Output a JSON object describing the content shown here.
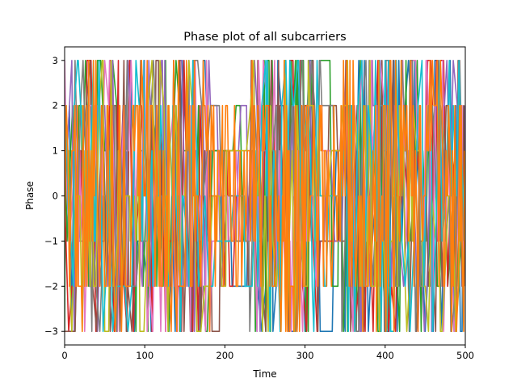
{
  "chart_data": {
    "type": "line",
    "title": "Phase plot of all subcarriers",
    "xlabel": "Time",
    "ylabel": "Phase",
    "xlim": [
      0,
      500
    ],
    "ylim": [
      -3.3,
      3.3
    ],
    "xticks": [
      0,
      100,
      200,
      300,
      400,
      500
    ],
    "yticks": [
      -3,
      -2,
      -1,
      0,
      1,
      2,
      3
    ],
    "grid": false,
    "legend": "none",
    "x_range": [
      0,
      500
    ],
    "phase_levels": [
      -3,
      -2,
      -1,
      0,
      1,
      2,
      3
    ],
    "series": [
      {
        "color": "#1f77b4",
        "seed": 11
      },
      {
        "color": "#2ca02c",
        "seed": 23
      },
      {
        "color": "#d62728",
        "seed": 37
      },
      {
        "color": "#9467bd",
        "seed": 41
      },
      {
        "color": "#8c564b",
        "seed": 53
      },
      {
        "color": "#e377c2",
        "seed": 67
      },
      {
        "color": "#7f7f7f",
        "seed": 71
      },
      {
        "color": "#bcbd22",
        "seed": 83
      },
      {
        "color": "#17becf",
        "seed": 97
      },
      {
        "color": "#ff7f0e",
        "seed": 101
      }
    ],
    "quiet_segments": [
      [
        185,
        230
      ],
      [
        320,
        345
      ]
    ]
  }
}
